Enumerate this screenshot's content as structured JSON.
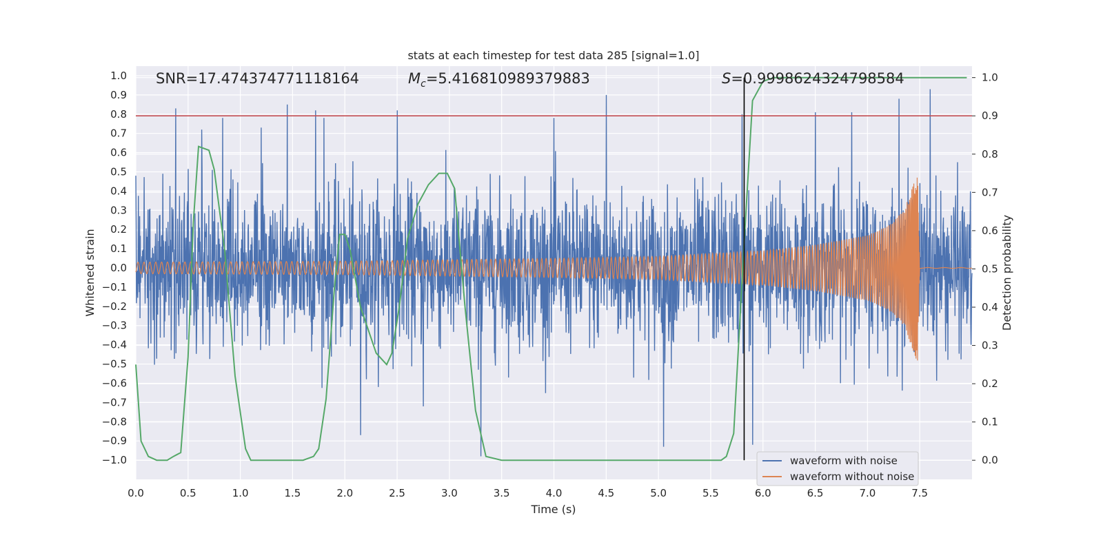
{
  "chart_data": {
    "type": "line",
    "title": "stats at each timestep for test data 285 [signal=1.0]",
    "xlabel": "Time (s)",
    "ylabel": "Whitened strain",
    "y2label": "Detection probability",
    "xlim": [
      0.0,
      8.0
    ],
    "ylim": [
      -1.1,
      1.05
    ],
    "y2lim": [
      -0.05,
      1.03
    ],
    "xticks": [
      "0.0",
      "0.5",
      "1.0",
      "1.5",
      "2.0",
      "2.5",
      "3.0",
      "3.5",
      "4.0",
      "4.5",
      "5.0",
      "5.5",
      "6.0",
      "6.5",
      "7.0",
      "7.5"
    ],
    "yticks": [
      "1.0",
      "0.9",
      "0.8",
      "0.7",
      "0.6",
      "0.5",
      "0.4",
      "0.3",
      "0.2",
      "0.1",
      "0.0",
      "−0.1",
      "−0.2",
      "−0.3",
      "−0.4",
      "−0.5",
      "−0.6",
      "−0.7",
      "−0.8",
      "−0.9",
      "−1.0"
    ],
    "y2ticks": [
      "1.0",
      "0.9",
      "0.8",
      "0.7",
      "0.6",
      "0.5",
      "0.4",
      "0.3",
      "0.2",
      "0.1",
      "0.0"
    ],
    "grid": true,
    "legend_position": "bottom-right",
    "series": [
      {
        "name": "waveform with noise",
        "color": "#4c72b0",
        "axis": "left",
        "description": "dense noisy strain, amplitude about ±0.5 with spikes up to ±1.0",
        "spikes_x": [
          0.38,
          0.63,
          0.83,
          1.2,
          1.45,
          1.72,
          1.8,
          2.15,
          2.5,
          2.75,
          3.3,
          4.0,
          4.5,
          5.05,
          5.8,
          5.9,
          6.5,
          6.85,
          7.3,
          7.6
        ],
        "spikes_y": [
          0.83,
          0.72,
          0.78,
          0.73,
          0.85,
          0.82,
          0.78,
          -0.87,
          0.82,
          -0.72,
          -0.98,
          0.78,
          0.9,
          -0.93,
          0.8,
          -0.92,
          0.81,
          0.81,
          0.88,
          0.93
        ]
      },
      {
        "name": "waveform without noise",
        "color": "#dd8452",
        "axis": "left",
        "description": "chirp signal whose amplitude grows from about 0.03 to about 0.5 then stops near t=7.5 s",
        "envelope_x": [
          0.0,
          2.0,
          4.0,
          5.0,
          6.0,
          6.5,
          7.0,
          7.2,
          7.35,
          7.45,
          7.48,
          7.5
        ],
        "envelope_y": [
          0.03,
          0.035,
          0.05,
          0.06,
          0.09,
          0.12,
          0.17,
          0.22,
          0.3,
          0.45,
          0.5,
          0.0
        ]
      },
      {
        "name": "",
        "color": "#55a868",
        "axis": "right",
        "x": [
          0.0,
          0.05,
          0.12,
          0.2,
          0.3,
          0.36,
          0.43,
          0.5,
          0.55,
          0.6,
          0.7,
          0.75,
          0.85,
          0.95,
          1.05,
          1.1,
          1.2,
          1.4,
          1.6,
          1.7,
          1.75,
          1.82,
          1.9,
          1.95,
          2.0,
          2.05,
          2.15,
          2.3,
          2.4,
          2.45,
          2.52,
          2.6,
          2.7,
          2.8,
          2.9,
          2.98,
          3.05,
          3.15,
          3.25,
          3.35,
          3.5,
          4.0,
          5.0,
          5.6,
          5.65,
          5.72,
          5.82,
          5.9,
          6.0,
          6.1,
          6.5,
          7.0,
          7.5,
          7.95
        ],
        "y": [
          0.25,
          0.05,
          0.01,
          0.0,
          0.0,
          0.01,
          0.02,
          0.27,
          0.62,
          0.82,
          0.81,
          0.76,
          0.55,
          0.22,
          0.03,
          0.0,
          0.0,
          0.0,
          0.0,
          0.01,
          0.03,
          0.16,
          0.45,
          0.59,
          0.59,
          0.55,
          0.4,
          0.28,
          0.25,
          0.28,
          0.4,
          0.58,
          0.67,
          0.72,
          0.75,
          0.75,
          0.71,
          0.4,
          0.13,
          0.01,
          0.0,
          0.0,
          0.0,
          0.0,
          0.01,
          0.07,
          0.57,
          0.94,
          0.99,
          1.0,
          1.0,
          1.0,
          1.0,
          1.0
        ]
      }
    ],
    "hlines": [
      {
        "y2": 0.9,
        "color": "#c44e52"
      }
    ],
    "vlines": [
      {
        "x": 5.82,
        "color": "#000000"
      }
    ],
    "annotations": {
      "snr": "SNR=17.474374771118164",
      "mc_symbol": "M",
      "mc_sub": "c",
      "mc_value": "=5.416810989379883",
      "s_symbol": "S",
      "s_value": "=0.9998624324798584"
    }
  }
}
